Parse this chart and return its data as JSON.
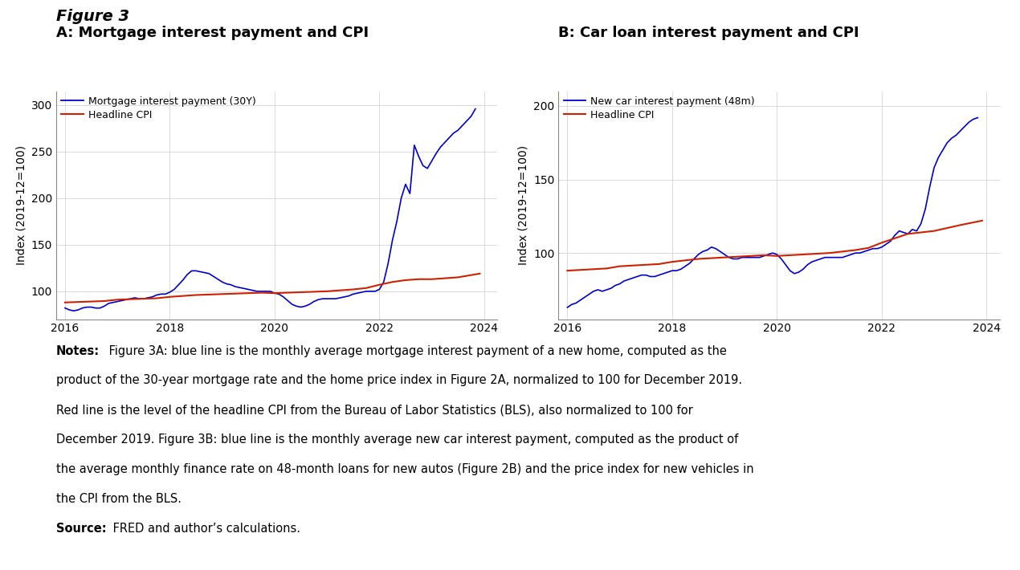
{
  "fig3_title": "Figure 3",
  "panel_a_title": "A: Mortgage interest payment and CPI",
  "panel_b_title": "B: Car loan interest payment and CPI",
  "ylabel": "Index (2019-12=100)",
  "blue_label_a": "Mortgage interest payment (30Y)",
  "red_label_a": "Headline CPI",
  "blue_label_b": "New car interest payment (48m)",
  "red_label_b": "Headline CPI",
  "blue_color": "#0000cc",
  "red_color": "#cc2200",
  "xlim_left": 2015.83,
  "xlim_right": 2024.25,
  "panel_a_ylim": [
    70,
    315
  ],
  "panel_b_ylim": [
    55,
    210
  ],
  "panel_a_yticks": [
    100,
    150,
    200,
    250,
    300
  ],
  "panel_b_yticks": [
    100,
    150,
    200
  ],
  "xticks": [
    2016,
    2018,
    2020,
    2022,
    2024
  ],
  "notes_bold": "Notes:",
  "notes_line1": " Figure 3A: blue line is the monthly average mortgage interest payment of a new home, computed as the",
  "notes_line2": "product of the 30-year mortgage rate and the home price index in Figure 2A, normalized to 100 for December 2019.",
  "notes_line3": "Red line is the level of the headline CPI from the Bureau of Labor Statistics (BLS), also normalized to 100 for",
  "notes_line4": "December 2019. Figure 3B: blue line is the monthly average new car interest payment, computed as the product of",
  "notes_line5": "the average monthly finance rate on 48-month loans for new autos (Figure 2B) and the price index for new vehicles in",
  "notes_line6": "the CPI from the BLS.",
  "source_bold": "Source:",
  "source_text": " FRED and author’s calculations.",
  "mortgage_x": [
    2016.0,
    2016.083,
    2016.167,
    2016.25,
    2016.333,
    2016.417,
    2016.5,
    2016.583,
    2016.667,
    2016.75,
    2016.833,
    2016.917,
    2017.0,
    2017.083,
    2017.167,
    2017.25,
    2017.333,
    2017.417,
    2017.5,
    2017.583,
    2017.667,
    2017.75,
    2017.833,
    2017.917,
    2018.0,
    2018.083,
    2018.167,
    2018.25,
    2018.333,
    2018.417,
    2018.5,
    2018.583,
    2018.667,
    2018.75,
    2018.833,
    2018.917,
    2019.0,
    2019.083,
    2019.167,
    2019.25,
    2019.333,
    2019.417,
    2019.5,
    2019.583,
    2019.667,
    2019.75,
    2019.833,
    2019.917,
    2020.0,
    2020.083,
    2020.167,
    2020.25,
    2020.333,
    2020.417,
    2020.5,
    2020.583,
    2020.667,
    2020.75,
    2020.833,
    2020.917,
    2021.0,
    2021.083,
    2021.167,
    2021.25,
    2021.333,
    2021.417,
    2021.5,
    2021.583,
    2021.667,
    2021.75,
    2021.833,
    2021.917,
    2022.0,
    2022.083,
    2022.167,
    2022.25,
    2022.333,
    2022.417,
    2022.5,
    2022.583,
    2022.667,
    2022.75,
    2022.833,
    2022.917,
    2023.0,
    2023.083,
    2023.167,
    2023.25,
    2023.333,
    2023.417,
    2023.5,
    2023.583,
    2023.667,
    2023.75,
    2023.833
  ],
  "mortgage_y": [
    82,
    80,
    79,
    80,
    82,
    83,
    83,
    82,
    82,
    84,
    87,
    88,
    89,
    90,
    91,
    92,
    93,
    92,
    92,
    93,
    94,
    96,
    97,
    97,
    99,
    102,
    107,
    112,
    118,
    122,
    122,
    121,
    120,
    119,
    116,
    113,
    110,
    108,
    107,
    105,
    104,
    103,
    102,
    101,
    100,
    100,
    100,
    100,
    98,
    97,
    94,
    90,
    86,
    84,
    83,
    84,
    86,
    89,
    91,
    92,
    92,
    92,
    92,
    93,
    94,
    95,
    97,
    98,
    99,
    100,
    100,
    100,
    102,
    110,
    130,
    155,
    175,
    200,
    215,
    205,
    257,
    245,
    235,
    232,
    240,
    248,
    255,
    260,
    265,
    270,
    273,
    278,
    283,
    288,
    296
  ],
  "cpi_a_x": [
    2016.0,
    2016.25,
    2016.5,
    2016.75,
    2017.0,
    2017.25,
    2017.5,
    2017.75,
    2018.0,
    2018.25,
    2018.5,
    2018.75,
    2019.0,
    2019.25,
    2019.5,
    2019.75,
    2020.0,
    2020.25,
    2020.5,
    2020.75,
    2021.0,
    2021.25,
    2021.5,
    2021.75,
    2022.0,
    2022.25,
    2022.5,
    2022.75,
    2023.0,
    2023.25,
    2023.5,
    2023.917
  ],
  "cpi_a_y": [
    88,
    88.5,
    89,
    89.5,
    91,
    91.5,
    92,
    92.5,
    94,
    95,
    96,
    96.5,
    97,
    97.5,
    98,
    98.5,
    98,
    98.5,
    99,
    99.5,
    100,
    101,
    102,
    103.5,
    107,
    110,
    112,
    113,
    113,
    114,
    115,
    119
  ],
  "car_x": [
    2016.0,
    2016.083,
    2016.167,
    2016.25,
    2016.333,
    2016.417,
    2016.5,
    2016.583,
    2016.667,
    2016.75,
    2016.833,
    2016.917,
    2017.0,
    2017.083,
    2017.167,
    2017.25,
    2017.333,
    2017.417,
    2017.5,
    2017.583,
    2017.667,
    2017.75,
    2017.833,
    2017.917,
    2018.0,
    2018.083,
    2018.167,
    2018.25,
    2018.333,
    2018.417,
    2018.5,
    2018.583,
    2018.667,
    2018.75,
    2018.833,
    2018.917,
    2019.0,
    2019.083,
    2019.167,
    2019.25,
    2019.333,
    2019.417,
    2019.5,
    2019.583,
    2019.667,
    2019.75,
    2019.833,
    2019.917,
    2020.0,
    2020.083,
    2020.167,
    2020.25,
    2020.333,
    2020.417,
    2020.5,
    2020.583,
    2020.667,
    2020.75,
    2020.833,
    2020.917,
    2021.0,
    2021.083,
    2021.167,
    2021.25,
    2021.333,
    2021.417,
    2021.5,
    2021.583,
    2021.667,
    2021.75,
    2021.833,
    2021.917,
    2022.0,
    2022.083,
    2022.167,
    2022.25,
    2022.333,
    2022.417,
    2022.5,
    2022.583,
    2022.667,
    2022.75,
    2022.833,
    2022.917,
    2023.0,
    2023.083,
    2023.167,
    2023.25,
    2023.333,
    2023.417,
    2023.5,
    2023.583,
    2023.667,
    2023.75,
    2023.833
  ],
  "car_y": [
    63,
    65,
    66,
    68,
    70,
    72,
    74,
    75,
    74,
    75,
    76,
    78,
    79,
    81,
    82,
    83,
    84,
    85,
    85,
    84,
    84,
    85,
    86,
    87,
    88,
    88,
    89,
    91,
    93,
    96,
    99,
    101,
    102,
    104,
    103,
    101,
    99,
    97,
    96,
    96,
    97,
    97,
    97,
    97,
    97,
    98,
    99,
    100,
    99,
    96,
    92,
    88,
    86,
    87,
    89,
    92,
    94,
    95,
    96,
    97,
    97,
    97,
    97,
    97,
    98,
    99,
    100,
    100,
    101,
    102,
    103,
    103,
    104,
    106,
    108,
    112,
    115,
    114,
    113,
    116,
    115,
    120,
    130,
    145,
    158,
    165,
    170,
    175,
    178,
    180,
    183,
    186,
    189,
    191,
    192
  ],
  "cpi_b_x": [
    2016.0,
    2016.25,
    2016.5,
    2016.75,
    2017.0,
    2017.25,
    2017.5,
    2017.75,
    2018.0,
    2018.25,
    2018.5,
    2018.75,
    2019.0,
    2019.25,
    2019.5,
    2019.75,
    2020.0,
    2020.25,
    2020.5,
    2020.75,
    2021.0,
    2021.25,
    2021.5,
    2021.75,
    2022.0,
    2022.25,
    2022.5,
    2022.75,
    2023.0,
    2023.25,
    2023.5,
    2023.917
  ],
  "cpi_b_y": [
    88,
    88.5,
    89,
    89.5,
    91,
    91.5,
    92,
    92.5,
    94,
    95,
    96,
    96.5,
    97,
    97.5,
    98,
    98.5,
    98,
    98.5,
    99,
    99.5,
    100,
    101,
    102,
    103.5,
    107,
    110,
    113,
    114,
    115,
    117,
    119,
    122
  ]
}
